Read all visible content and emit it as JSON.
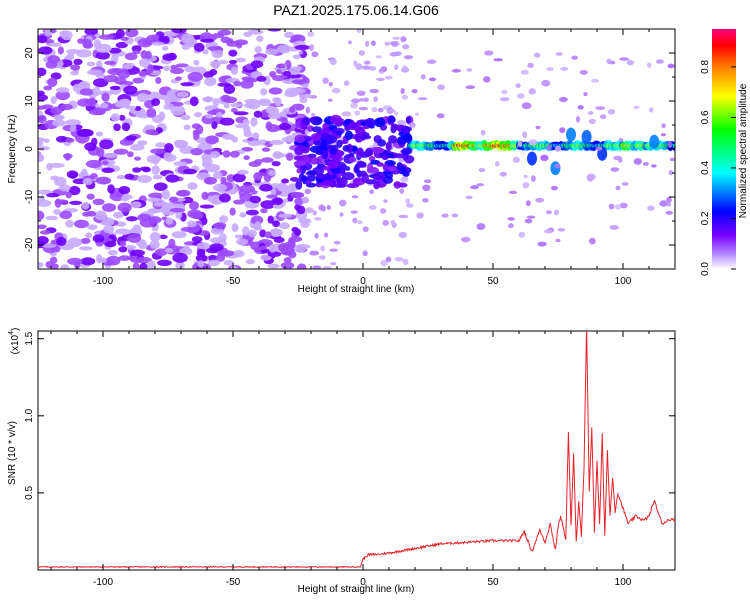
{
  "chart_data": [
    {
      "type": "heatmap",
      "title": "PAZ1.2025.175.06.14.G06",
      "xlabel": "Height of straight line (km)",
      "ylabel": "Frequency (Hz)",
      "xlim": [
        -125,
        120
      ],
      "ylim": [
        -25,
        25
      ],
      "x_ticks": [
        -100,
        -50,
        0,
        50,
        100
      ],
      "x_tick_labels": [
        "-100",
        "-50",
        "0",
        "50",
        "100"
      ],
      "y_ticks": [
        -20,
        -10,
        0,
        10,
        20
      ],
      "y_tick_labels": [
        "-20",
        "-10",
        "0",
        "10",
        "20"
      ],
      "colorbar": {
        "label": "Normalized spectral amplitude",
        "range": [
          0,
          0.95
        ],
        "ticks": [
          0,
          0.2,
          0.4,
          0.6,
          0.8
        ],
        "tick_labels": [
          "0.0",
          "0.2",
          "0.4",
          "0.6",
          "0.8"
        ],
        "colormap": [
          "#ffffff",
          "#7a00ff",
          "#0000ff",
          "#00ffff",
          "#00ff00",
          "#ffff00",
          "#ff8000",
          "#ff0000",
          "#ff0080"
        ]
      },
      "regions": [
        {
          "x_range": [
            -125,
            -25
          ],
          "freq_range": [
            -25,
            25
          ],
          "amplitude_range": [
            0.0,
            0.12
          ],
          "description_colors": [
            "#d9c2ff",
            "#b080ff",
            "#7a20ff"
          ]
        },
        {
          "x_range": [
            -25,
            18
          ],
          "freq_range": [
            -8,
            6
          ],
          "amplitude_range": [
            0.05,
            0.2
          ]
        },
        {
          "x_range": [
            18,
            120
          ],
          "freq_center": 0.7,
          "amplitude_range": [
            0.3,
            0.95
          ]
        }
      ],
      "grid": false
    },
    {
      "type": "line",
      "xlabel": "Height of straight line (km)",
      "ylabel": "SNR (10 * v/v)",
      "y_multiplier": "(x10",
      "y_multiplier_exp": "4",
      "y_multiplier_close": ")",
      "xlim": [
        -125,
        120
      ],
      "ylim": [
        0,
        1.55
      ],
      "x_ticks": [
        -100,
        -50,
        0,
        50,
        100
      ],
      "x_tick_labels": [
        "-100",
        "-50",
        "0",
        "50",
        "100"
      ],
      "y_ticks": [
        0.5,
        1.0,
        1.5
      ],
      "y_tick_labels": [
        "0.5",
        "1.0",
        "1.5"
      ],
      "line_color": "#e8232a",
      "grid": false,
      "series": [
        {
          "x": [
            -125,
            -100,
            -75,
            -50,
            -25,
            -1,
            0,
            2,
            5,
            10,
            20,
            30,
            40,
            50,
            60,
            62,
            65,
            68,
            70,
            72,
            74,
            75,
            76,
            78,
            79,
            80,
            81,
            82,
            83,
            84,
            85,
            86,
            87,
            88,
            89,
            90,
            91,
            92,
            93,
            94,
            95,
            96,
            97,
            98,
            100,
            102,
            105,
            108,
            110,
            112,
            115,
            118,
            120
          ],
          "y": [
            0.02,
            0.02,
            0.02,
            0.02,
            0.02,
            0.02,
            0.07,
            0.1,
            0.1,
            0.11,
            0.14,
            0.17,
            0.18,
            0.19,
            0.19,
            0.25,
            0.12,
            0.26,
            0.18,
            0.3,
            0.13,
            0.28,
            0.35,
            0.2,
            0.9,
            0.28,
            0.75,
            0.18,
            0.45,
            0.22,
            0.65,
            1.6,
            0.5,
            0.93,
            0.25,
            0.7,
            0.3,
            0.88,
            0.22,
            0.77,
            0.35,
            0.6,
            0.38,
            0.5,
            0.4,
            0.3,
            0.35,
            0.32,
            0.35,
            0.45,
            0.3,
            0.33,
            0.32
          ]
        }
      ]
    }
  ]
}
